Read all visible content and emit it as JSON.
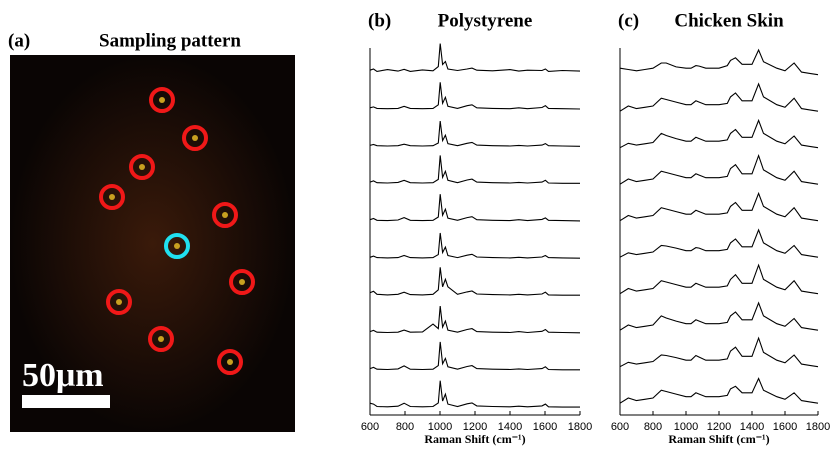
{
  "chart_data": [
    {
      "type": "image",
      "panel_label": "(a)",
      "title": "Sampling pattern",
      "scale_bar_label": "50μm"
    },
    {
      "type": "line",
      "panel_label": "(b)",
      "title": "Polystyrene",
      "xlabel": "Raman Shift (cm⁻¹)",
      "xlim": [
        600,
        1800
      ],
      "xticks": [
        600,
        800,
        1000,
        1200,
        1400,
        1600,
        1800
      ],
      "x": [
        600,
        620,
        640,
        700,
        760,
        795,
        830,
        900,
        960,
        990,
        1001,
        1015,
        1031,
        1045,
        1100,
        1155,
        1183,
        1210,
        1300,
        1400,
        1450,
        1500,
        1583,
        1602,
        1620,
        1700,
        1800
      ],
      "series": [
        {
          "color": "#000",
          "values": [
            0.06,
            0.1,
            0.02,
            0.08,
            0.03,
            0.09,
            0.02,
            0.07,
            0.04,
            0.18,
            0.95,
            0.25,
            0.35,
            0.1,
            0.05,
            0.1,
            0.13,
            0.06,
            0.04,
            0.08,
            0.03,
            0.06,
            0.05,
            0.1,
            0.02,
            0.05,
            0.03
          ]
        },
        {
          "color": "#000",
          "values": [
            0.05,
            0.08,
            0.03,
            0.02,
            0.03,
            0.1,
            0.03,
            0.02,
            0.03,
            0.15,
            0.9,
            0.2,
            0.4,
            0.1,
            0.03,
            0.12,
            0.15,
            0.05,
            0.03,
            0.02,
            0.05,
            0.02,
            0.06,
            0.12,
            0.03,
            0.02,
            0.01
          ]
        },
        {
          "color": "#000",
          "values": [
            0.04,
            0.07,
            0.03,
            0.02,
            0.03,
            0.08,
            0.03,
            0.02,
            0.03,
            0.12,
            0.85,
            0.2,
            0.38,
            0.1,
            0.03,
            0.11,
            0.14,
            0.05,
            0.03,
            0.02,
            0.04,
            0.02,
            0.05,
            0.1,
            0.03,
            0.02,
            0.01
          ]
        },
        {
          "color": "#000",
          "values": [
            0.06,
            0.1,
            0.04,
            0.03,
            0.05,
            0.12,
            0.04,
            0.03,
            0.04,
            0.15,
            0.95,
            0.22,
            0.42,
            0.12,
            0.04,
            0.13,
            0.16,
            0.06,
            0.04,
            0.03,
            0.05,
            0.03,
            0.06,
            0.12,
            0.03,
            0.02,
            0.02
          ]
        },
        {
          "color": "#000",
          "values": [
            0.05,
            0.09,
            0.03,
            0.02,
            0.04,
            0.12,
            0.03,
            0.02,
            0.03,
            0.14,
            0.9,
            0.2,
            0.4,
            0.1,
            0.03,
            0.12,
            0.15,
            0.05,
            0.03,
            0.02,
            0.05,
            0.02,
            0.06,
            0.11,
            0.03,
            0.02,
            0.01
          ]
        },
        {
          "color": "#000",
          "values": [
            0.04,
            0.08,
            0.03,
            0.02,
            0.03,
            0.1,
            0.03,
            0.02,
            0.03,
            0.13,
            0.85,
            0.2,
            0.38,
            0.1,
            0.03,
            0.11,
            0.14,
            0.05,
            0.03,
            0.02,
            0.04,
            0.02,
            0.05,
            0.1,
            0.03,
            0.02,
            0.01
          ]
        },
        {
          "color": "#000",
          "values": [
            0.1,
            0.15,
            0.05,
            0.03,
            0.05,
            0.12,
            0.04,
            0.03,
            0.05,
            0.2,
            0.95,
            0.3,
            0.55,
            0.3,
            0.05,
            0.13,
            0.16,
            0.06,
            0.04,
            0.03,
            0.05,
            0.03,
            0.06,
            0.12,
            0.03,
            0.02,
            0.02
          ]
        },
        {
          "color": "#000",
          "values": [
            0.05,
            0.09,
            0.03,
            0.02,
            0.03,
            0.1,
            0.03,
            0.04,
            0.3,
            0.15,
            0.9,
            0.2,
            0.4,
            0.1,
            0.03,
            0.12,
            0.15,
            0.05,
            0.03,
            0.02,
            0.05,
            0.02,
            0.06,
            0.12,
            0.03,
            0.02,
            0.01
          ]
        },
        {
          "color": "#000",
          "values": [
            0.06,
            0.1,
            0.04,
            0.03,
            0.05,
            0.15,
            0.04,
            0.03,
            0.04,
            0.16,
            0.95,
            0.22,
            0.4,
            0.12,
            0.04,
            0.13,
            0.16,
            0.06,
            0.04,
            0.03,
            0.05,
            0.03,
            0.06,
            0.12,
            0.03,
            0.02,
            0.02
          ]
        },
        {
          "color": "#000",
          "values": [
            0.15,
            0.12,
            0.04,
            0.03,
            0.05,
            0.15,
            0.04,
            0.03,
            0.04,
            0.16,
            0.9,
            0.22,
            0.45,
            0.12,
            0.04,
            0.13,
            0.16,
            0.06,
            0.04,
            0.03,
            0.05,
            0.03,
            0.06,
            0.12,
            0.03,
            0.02,
            0.02
          ]
        }
      ]
    },
    {
      "type": "line",
      "panel_label": "(c)",
      "title": "Chicken Skin",
      "xlabel": "Raman Shift (cm⁻¹)",
      "xlim": [
        600,
        1800
      ],
      "xticks": [
        600,
        800,
        1000,
        1200,
        1400,
        1600,
        1800
      ],
      "x": [
        600,
        650,
        700,
        750,
        800,
        850,
        880,
        940,
        1000,
        1030,
        1060,
        1080,
        1120,
        1200,
        1250,
        1270,
        1300,
        1340,
        1400,
        1440,
        1470,
        1550,
        1600,
        1655,
        1700,
        1750,
        1800
      ],
      "series": [
        {
          "color": "#000",
          "values": [
            0.3,
            0.25,
            0.2,
            0.25,
            0.3,
            0.5,
            0.5,
            0.35,
            0.3,
            0.3,
            0.4,
            0.38,
            0.3,
            0.3,
            0.4,
            0.6,
            0.7,
            0.45,
            0.45,
            1.0,
            0.55,
            0.3,
            0.2,
            0.5,
            0.15,
            0.1,
            0.05
          ]
        },
        {
          "color": "#000",
          "values": [
            0.05,
            0.25,
            0.15,
            0.2,
            0.25,
            0.55,
            0.5,
            0.4,
            0.3,
            0.3,
            0.45,
            0.4,
            0.3,
            0.3,
            0.35,
            0.6,
            0.75,
            0.45,
            0.45,
            1.1,
            0.6,
            0.3,
            0.2,
            0.55,
            0.15,
            0.1,
            0.05
          ]
        },
        {
          "color": "#000",
          "values": [
            0.05,
            0.22,
            0.15,
            0.2,
            0.25,
            0.6,
            0.52,
            0.4,
            0.3,
            0.3,
            0.45,
            0.4,
            0.3,
            0.3,
            0.35,
            0.6,
            0.75,
            0.45,
            0.45,
            1.1,
            0.6,
            0.3,
            0.2,
            0.5,
            0.15,
            0.1,
            0.05
          ]
        },
        {
          "color": "#000",
          "values": [
            0.05,
            0.25,
            0.15,
            0.2,
            0.25,
            0.55,
            0.5,
            0.4,
            0.3,
            0.3,
            0.45,
            0.4,
            0.3,
            0.3,
            0.35,
            0.65,
            0.8,
            0.45,
            0.45,
            1.15,
            0.6,
            0.3,
            0.2,
            0.55,
            0.15,
            0.1,
            0.05
          ]
        },
        {
          "color": "#000",
          "values": [
            0.05,
            0.25,
            0.15,
            0.2,
            0.25,
            0.55,
            0.5,
            0.4,
            0.3,
            0.3,
            0.45,
            0.4,
            0.3,
            0.3,
            0.35,
            0.6,
            0.75,
            0.45,
            0.45,
            1.1,
            0.6,
            0.3,
            0.2,
            0.55,
            0.15,
            0.1,
            0.05
          ]
        },
        {
          "color": "#000",
          "values": [
            0.05,
            0.22,
            0.15,
            0.2,
            0.25,
            0.5,
            0.48,
            0.4,
            0.3,
            0.3,
            0.42,
            0.4,
            0.3,
            0.3,
            0.35,
            0.6,
            0.75,
            0.45,
            0.45,
            1.1,
            0.6,
            0.3,
            0.2,
            0.5,
            0.15,
            0.1,
            0.05
          ]
        },
        {
          "color": "#000",
          "values": [
            0.05,
            0.25,
            0.15,
            0.2,
            0.25,
            0.55,
            0.5,
            0.4,
            0.3,
            0.3,
            0.45,
            0.4,
            0.3,
            0.3,
            0.35,
            0.6,
            0.78,
            0.45,
            0.45,
            1.15,
            0.6,
            0.3,
            0.2,
            0.55,
            0.15,
            0.1,
            0.05
          ]
        },
        {
          "color": "#000",
          "values": [
            0.05,
            0.25,
            0.15,
            0.2,
            0.25,
            0.6,
            0.52,
            0.4,
            0.3,
            0.3,
            0.45,
            0.4,
            0.3,
            0.3,
            0.35,
            0.6,
            0.75,
            0.45,
            0.45,
            1.1,
            0.6,
            0.3,
            0.2,
            0.5,
            0.15,
            0.1,
            0.05
          ]
        },
        {
          "color": "#000",
          "values": [
            0.05,
            0.22,
            0.15,
            0.2,
            0.25,
            0.5,
            0.48,
            0.4,
            0.3,
            0.3,
            0.48,
            0.42,
            0.3,
            0.3,
            0.35,
            0.65,
            0.8,
            0.45,
            0.45,
            1.15,
            0.6,
            0.3,
            0.2,
            0.5,
            0.15,
            0.1,
            0.05
          ]
        },
        {
          "color": "#000",
          "values": [
            0.05,
            0.25,
            0.15,
            0.2,
            0.25,
            0.55,
            0.5,
            0.4,
            0.3,
            0.3,
            0.45,
            0.4,
            0.3,
            0.3,
            0.35,
            0.6,
            0.7,
            0.45,
            0.45,
            1.0,
            0.55,
            0.3,
            0.2,
            0.45,
            0.15,
            0.1,
            0.05
          ]
        }
      ]
    }
  ]
}
